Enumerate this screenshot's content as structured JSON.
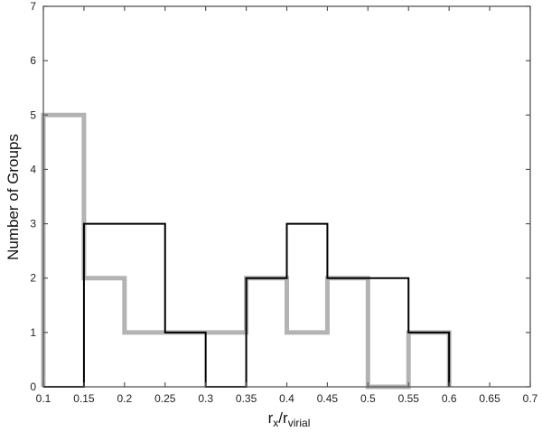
{
  "chart_data": {
    "type": "bar",
    "subtype": "step-histogram",
    "title": "",
    "xlabel": "r_x/r_virial",
    "xlabel_parts": {
      "base1": "r",
      "sub1": "x",
      "slash": "/",
      "base2": "r",
      "sub2": "virial"
    },
    "ylabel": "Number of Groups",
    "xlim": [
      0.1,
      0.7
    ],
    "ylim": [
      0,
      7
    ],
    "xticks": [
      "0.1",
      "0.15",
      "0.2",
      "0.25",
      "0.3",
      "0.35",
      "0.4",
      "0.45",
      "0.5",
      "0.55",
      "0.6",
      "0.65",
      "0.7"
    ],
    "yticks": [
      "0",
      "1",
      "2",
      "3",
      "4",
      "5",
      "6",
      "7"
    ],
    "grid": false,
    "legend": null,
    "bin_edges": [
      0.1,
      0.15,
      0.2,
      0.25,
      0.3,
      0.35,
      0.4,
      0.45,
      0.5,
      0.55,
      0.6
    ],
    "categories": [
      "0.10-0.15",
      "0.15-0.20",
      "0.20-0.25",
      "0.25-0.30",
      "0.30-0.35",
      "0.35-0.40",
      "0.40-0.45",
      "0.45-0.50",
      "0.50-0.55",
      "0.55-0.60"
    ],
    "series": [
      {
        "name": "black",
        "color": "#000000",
        "values": [
          0,
          3,
          3,
          1,
          0,
          2,
          3,
          2,
          2,
          1
        ]
      },
      {
        "name": "gray",
        "color": "#b3b3b3",
        "values": [
          5,
          2,
          1,
          1,
          1,
          2,
          1,
          2,
          0,
          1
        ]
      }
    ]
  }
}
